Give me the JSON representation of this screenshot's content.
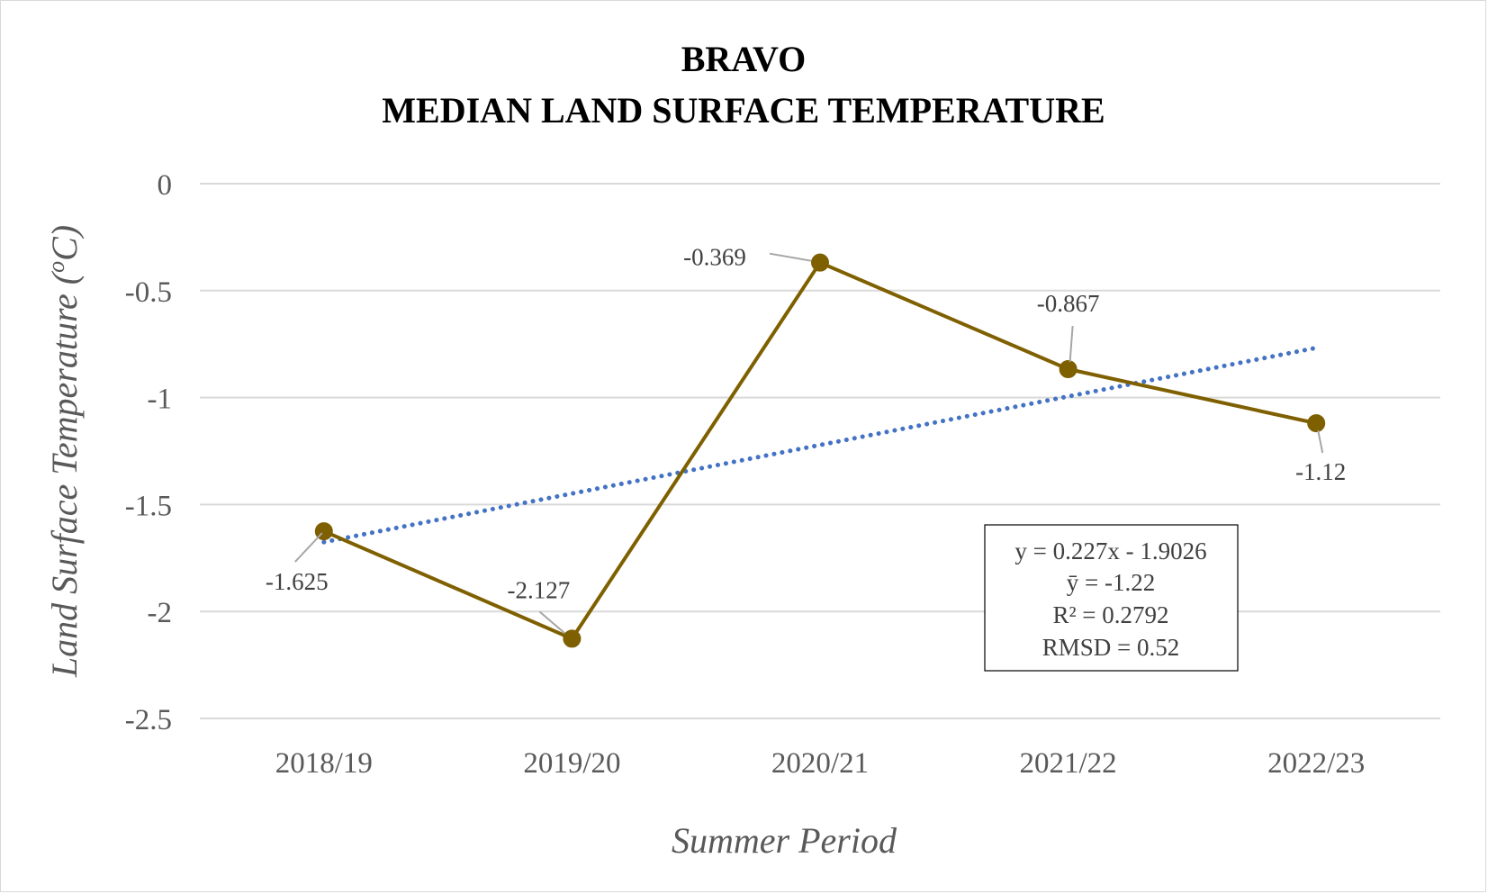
{
  "chart_data": {
    "type": "line",
    "title_line1": "BRAVO",
    "title_line2": "MEDIAN LAND SURFACE TEMPERATURE",
    "xlabel": "Summer Period",
    "ylabel": "Land Surface Temperature (oC)",
    "ylabel_parts": {
      "main": "Land Surface Temperature (",
      "sup": "o",
      "unit": "C)"
    },
    "categories": [
      "2018/19",
      "2019/20",
      "2020/21",
      "2021/22",
      "2022/23"
    ],
    "series": [
      {
        "values": [
          -1.625,
          -2.127,
          -0.369,
          -0.867,
          -1.12
        ],
        "color": "#7f6000"
      }
    ],
    "data_labels": [
      "-1.625",
      "-2.127",
      "-0.369",
      "-0.867",
      "-1.12"
    ],
    "trendline": {
      "style": "dotted",
      "color": "#4472c4",
      "slope": 0.227,
      "intercept": -1.9026
    },
    "stats_box": [
      "y = 0.227x - 1.9026",
      "ȳ = -1.22",
      "R² = 0.2792",
      "RMSD = 0.52"
    ],
    "ylim": [
      -2.5,
      0
    ],
    "yticks": [
      0,
      -0.5,
      -1,
      -1.5,
      -2,
      -2.5
    ],
    "ytick_labels": [
      "0",
      "-0.5",
      "-1",
      "-1.5",
      "-2",
      "-2.5"
    ],
    "grid": true,
    "legend": "none"
  }
}
